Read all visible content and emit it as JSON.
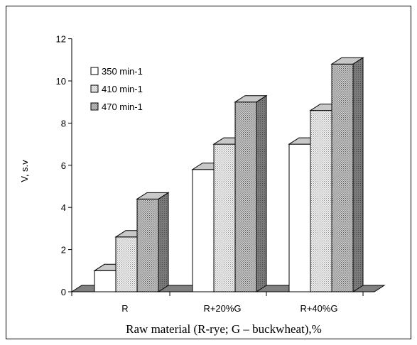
{
  "chart_data": {
    "type": "bar",
    "style": "3d-clustered-column",
    "categories": [
      "R",
      "R+20%G",
      "R+40%G"
    ],
    "series": [
      {
        "name": "350 min-1",
        "values": [
          1.0,
          5.8,
          7.0
        ],
        "fill": "white"
      },
      {
        "name": "410 min-1",
        "values": [
          2.6,
          7.0,
          8.6
        ],
        "fill": "light-dotted"
      },
      {
        "name": "470 min-1",
        "values": [
          4.4,
          9.0,
          10.8
        ],
        "fill": "dark-dotted"
      }
    ],
    "ylim": [
      0,
      12
    ],
    "yticks": [
      "0",
      "2",
      "4",
      "6",
      "8",
      "10",
      "12"
    ],
    "ylabel": "V, s.v",
    "xlabel": "Raw material (R-rye; G – buckwheat),%",
    "legend_position": "top-left",
    "grid": false,
    "colors": {
      "floor": "#808080",
      "outline": "#000000",
      "top_face": "#c8c8c8"
    }
  }
}
